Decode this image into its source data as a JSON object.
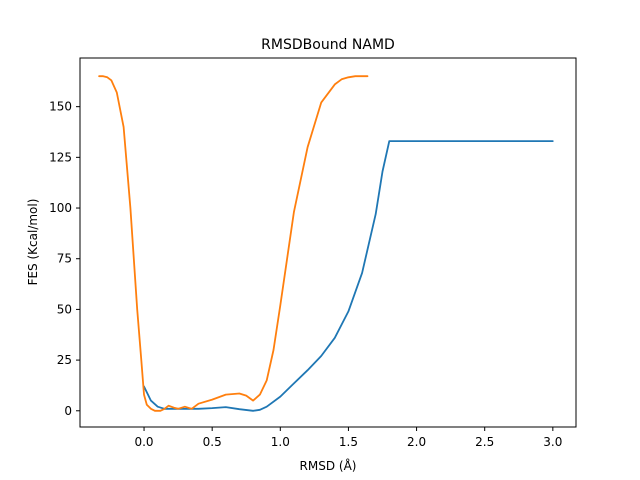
{
  "chart_data": {
    "type": "line",
    "title": "RMSDBound NAMD",
    "xlabel": "RMSD (Å)",
    "ylabel": "FES (Kcal/mol)",
    "xlim": [
      -0.47,
      3.17
    ],
    "ylim": [
      -8,
      174
    ],
    "xticks": [
      "0.0",
      "0.5",
      "1.0",
      "1.5",
      "2.0",
      "2.5",
      "3.0"
    ],
    "xtick_values": [
      0,
      0.5,
      1.0,
      1.5,
      2.0,
      2.5,
      3.0
    ],
    "yticks": [
      "0",
      "25",
      "50",
      "75",
      "100",
      "125",
      "150"
    ],
    "ytick_values": [
      0,
      25,
      50,
      75,
      100,
      125,
      150
    ],
    "grid": false,
    "colors": {
      "series1": "#1f77b4",
      "series2": "#ff7f0e"
    },
    "series": [
      {
        "color": "#1f77b4",
        "x": [
          0.0,
          0.05,
          0.1,
          0.15,
          0.2,
          0.3,
          0.4,
          0.5,
          0.6,
          0.7,
          0.8,
          0.85,
          0.9,
          1.0,
          1.1,
          1.2,
          1.3,
          1.4,
          1.5,
          1.6,
          1.7,
          1.75,
          1.8,
          2.0,
          2.5,
          3.0
        ],
        "y": [
          12,
          5,
          2,
          1,
          1,
          1,
          1,
          1.3,
          1.8,
          0.8,
          0,
          0.5,
          2,
          7,
          13.5,
          20,
          27,
          36,
          49,
          68,
          97,
          118,
          133,
          133,
          133,
          133
        ]
      },
      {
        "color": "#ff7f0e",
        "x": [
          -0.33,
          -0.3,
          -0.27,
          -0.24,
          -0.2,
          -0.15,
          -0.1,
          -0.05,
          -0.02,
          0.0,
          0.02,
          0.05,
          0.08,
          0.12,
          0.15,
          0.18,
          0.22,
          0.25,
          0.3,
          0.35,
          0.4,
          0.5,
          0.6,
          0.7,
          0.75,
          0.8,
          0.85,
          0.9,
          0.95,
          1.0,
          1.05,
          1.1,
          1.2,
          1.3,
          1.4,
          1.45,
          1.5,
          1.55,
          1.6,
          1.64
        ],
        "y": [
          165,
          165,
          164.5,
          163,
          157,
          140,
          100,
          50,
          25,
          8,
          3,
          1,
          0,
          0,
          1,
          2.5,
          1.5,
          1,
          2,
          1,
          3.5,
          5.5,
          8,
          8.5,
          7.5,
          5,
          8,
          15,
          30,
          52,
          75,
          98,
          130,
          152,
          161,
          163.5,
          164.5,
          165,
          165,
          165
        ]
      }
    ]
  }
}
